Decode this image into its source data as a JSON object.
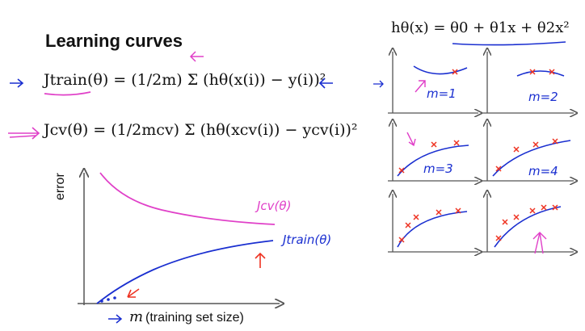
{
  "title": "Learning curves",
  "hypothesis": "hθ(x) = θ0 + θ1x + θ2x²",
  "formulas": {
    "j_train": "Jtrain(θ) = (1/2m) Σ (hθ(x(i)) − y(i))²",
    "j_cv": "Jcv(θ) = (1/2mcv) Σ (hθ(xcv(i)) − ycv(i))²"
  },
  "main_plot": {
    "ylabel": "error",
    "xlabel": "(training set size)",
    "x_symbol": "m",
    "cv_label": "Jcv(θ)",
    "train_label": "Jtrain(θ)"
  },
  "panels": [
    {
      "label": "m=1",
      "points": 1
    },
    {
      "label": "m=2",
      "points": 2
    },
    {
      "label": "m=3",
      "points": 3
    },
    {
      "label": "m=4",
      "points": 4
    },
    {
      "label": "",
      "points": 5
    },
    {
      "label": "",
      "points": 6
    }
  ],
  "colors": {
    "cv_curve": "#e040c8",
    "train_curve": "#1a2fd0",
    "annotation_red": "#ee3322",
    "marker_x": "#ee3322"
  }
}
